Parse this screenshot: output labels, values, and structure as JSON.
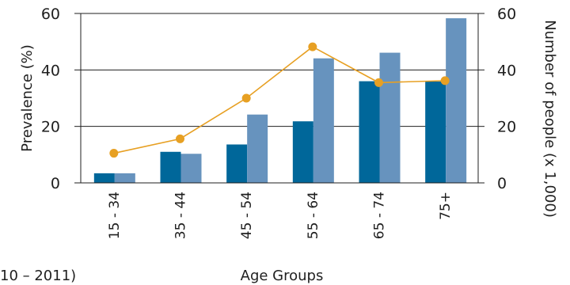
{
  "chart_data": {
    "type": "bar",
    "categories": [
      "15 - 34",
      "35 - 44",
      "45 - 54",
      "55 - 64",
      "65 - 74",
      "75+"
    ],
    "series": [
      {
        "kind": "bar",
        "axis": "left",
        "color": "#00679a",
        "values": [
          3.4,
          11.0,
          13.6,
          21.8,
          36.0,
          35.9
        ]
      },
      {
        "kind": "bar",
        "axis": "right",
        "color": "#6793be",
        "values": [
          3.4,
          10.3,
          24.2,
          44.1,
          46.1,
          58.3
        ]
      },
      {
        "kind": "line",
        "axis": "left",
        "color": "#e7a023",
        "values": [
          10.5,
          15.6,
          30.0,
          48.2,
          35.5,
          36.2
        ]
      }
    ],
    "xlabel": "Age Groups",
    "ylabel": "Prevalence (%)",
    "y2label": "Number of people (x 1,000)",
    "ylim": [
      0,
      60
    ],
    "y2lim": [
      0,
      60
    ],
    "yticks": [
      "0",
      "20",
      "40",
      "60"
    ],
    "y2ticks": [
      "0",
      "20",
      "40",
      "60"
    ],
    "grid": "horizontal",
    "footnote": "10 – 2011)"
  }
}
